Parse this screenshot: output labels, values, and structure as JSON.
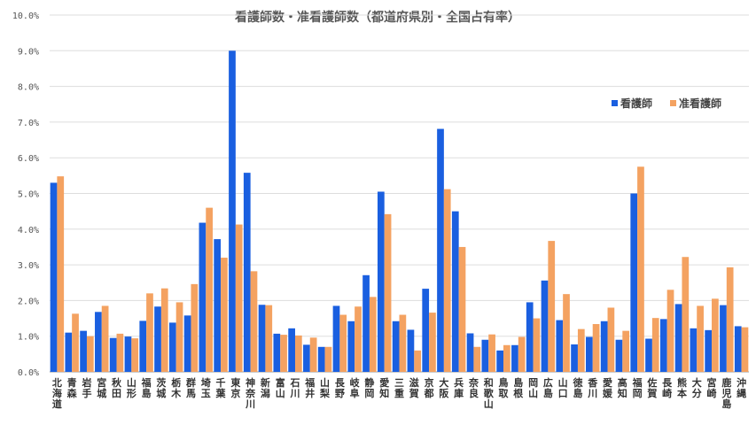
{
  "chart_data": {
    "type": "bar",
    "title": "看護師数・准看護師数（都道府県別・全国占有率）",
    "xlabel": "",
    "ylabel": "",
    "ylim": [
      0,
      10
    ],
    "yticks": [
      "0.0%",
      "1.0%",
      "2.0%",
      "3.0%",
      "4.0%",
      "5.0%",
      "6.0%",
      "7.0%",
      "8.0%",
      "9.0%",
      "10.0%"
    ],
    "grid": true,
    "legend_position": "top-right",
    "categories": [
      "北海道",
      "青森",
      "岩手",
      "宮城",
      "秋田",
      "山形",
      "福島",
      "茨城",
      "栃木",
      "群馬",
      "埼玉",
      "千葉",
      "東京",
      "神奈川",
      "新潟",
      "富山",
      "石川",
      "福井",
      "山梨",
      "長野",
      "岐阜",
      "静岡",
      "愛知",
      "三重",
      "滋賀",
      "京都",
      "大阪",
      "兵庫",
      "奈良",
      "和歌山",
      "鳥取",
      "島根",
      "岡山",
      "広島",
      "山口",
      "徳島",
      "香川",
      "愛媛",
      "高知",
      "福岡",
      "佐賀",
      "長崎",
      "熊本",
      "大分",
      "宮崎",
      "鹿児島",
      "沖縄"
    ],
    "series": [
      {
        "name": "看護師",
        "color": "#1a5fe0",
        "values": [
          5.3,
          1.1,
          1.15,
          1.68,
          0.95,
          0.99,
          1.43,
          1.83,
          1.38,
          1.58,
          4.18,
          3.72,
          9.0,
          5.58,
          1.88,
          1.07,
          1.22,
          0.76,
          0.7,
          1.85,
          1.42,
          2.71,
          5.05,
          1.42,
          1.18,
          2.33,
          6.81,
          4.5,
          1.08,
          0.9,
          0.6,
          0.75,
          1.95,
          2.56,
          1.45,
          0.77,
          0.98,
          1.42,
          0.9,
          5.0,
          0.93,
          1.48,
          1.9,
          1.22,
          1.17,
          1.87,
          1.28
        ]
      },
      {
        "name": "准看護師",
        "color": "#f4a261",
        "values": [
          5.48,
          1.63,
          1.0,
          1.85,
          1.07,
          0.94,
          2.2,
          2.34,
          1.95,
          2.46,
          4.6,
          3.2,
          4.13,
          2.82,
          1.87,
          1.04,
          1.02,
          0.96,
          0.7,
          1.6,
          1.83,
          2.1,
          4.42,
          1.6,
          0.6,
          1.66,
          5.12,
          3.5,
          0.7,
          1.05,
          0.75,
          0.98,
          1.5,
          3.67,
          2.18,
          1.2,
          1.34,
          1.8,
          1.15,
          5.75,
          1.51,
          2.3,
          3.22,
          1.85,
          2.05,
          2.93,
          1.25
        ]
      }
    ]
  }
}
